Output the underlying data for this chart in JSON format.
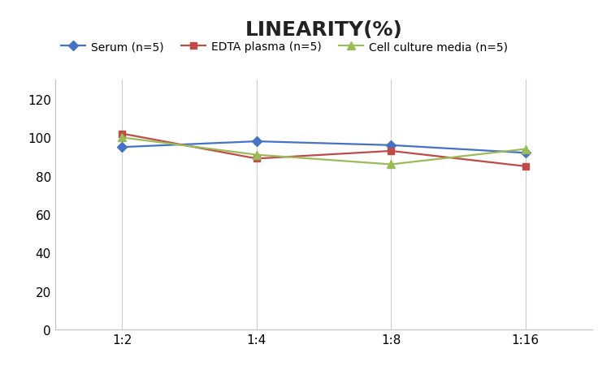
{
  "title": "LINEARITY(%)",
  "x_labels": [
    "1:2",
    "1:4",
    "1:8",
    "1:16"
  ],
  "x_positions": [
    0,
    1,
    2,
    3
  ],
  "series": [
    {
      "label": "Serum (n=5)",
      "values": [
        95,
        98,
        96,
        92
      ],
      "color": "#4472C4",
      "marker": "D",
      "markersize": 6,
      "linewidth": 1.6
    },
    {
      "label": "EDTA plasma (n=5)",
      "values": [
        102,
        89,
        93,
        85
      ],
      "color": "#BE4B48",
      "marker": "s",
      "markersize": 6,
      "linewidth": 1.6
    },
    {
      "label": "Cell culture media (n=5)",
      "values": [
        100,
        91,
        86,
        94
      ],
      "color": "#9BBB59",
      "marker": "^",
      "markersize": 7,
      "linewidth": 1.6
    }
  ],
  "ylim": [
    0,
    130
  ],
  "yticks": [
    0,
    20,
    40,
    60,
    80,
    100,
    120
  ],
  "title_fontsize": 18,
  "legend_fontsize": 10,
  "tick_fontsize": 11,
  "background_color": "#ffffff",
  "grid_color": "#cccccc"
}
